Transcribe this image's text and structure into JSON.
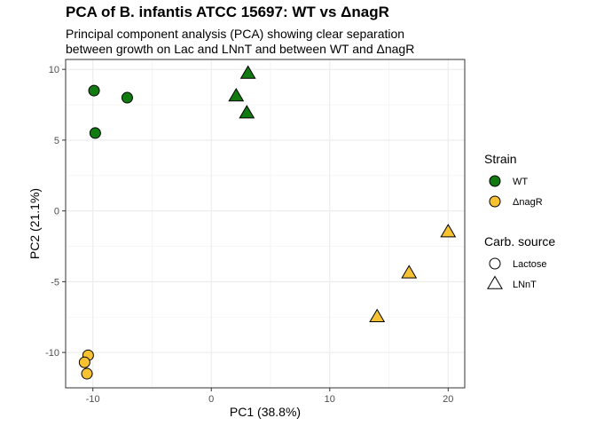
{
  "chart_data": {
    "type": "scatter",
    "title": "PCA of B. infantis ATCC 15697: WT vs ΔnagR",
    "subtitle": "Principal component analysis (PCA) showing clear separation\nbetween growth on Lac and LNnT and between WT and ΔnagR",
    "xlabel": "PC1 (38.8%)",
    "ylabel": "PC2 (21.1%)",
    "xlim": [
      -12.3,
      21.4
    ],
    "ylim": [
      -12.5,
      10.7
    ],
    "xticks": [
      -10,
      0,
      10,
      20
    ],
    "yticks": [
      -10,
      -5,
      0,
      5,
      10
    ],
    "grid": true,
    "legend_position": "right",
    "legends": [
      {
        "title": "Strain",
        "entries": [
          {
            "label": "WT",
            "color": "#117a11"
          },
          {
            "label": "ΔnagR",
            "color": "#f7c232"
          }
        ]
      },
      {
        "title": "Carb. source",
        "entries": [
          {
            "label": "Lactose",
            "shape": "circle"
          },
          {
            "label": "LNnT",
            "shape": "triangle"
          }
        ]
      }
    ],
    "points": [
      {
        "x": -9.9,
        "y": 8.5,
        "strain": "WT",
        "source": "Lactose"
      },
      {
        "x": -7.1,
        "y": 8.0,
        "strain": "WT",
        "source": "Lactose"
      },
      {
        "x": -9.8,
        "y": 5.5,
        "strain": "WT",
        "source": "Lactose"
      },
      {
        "x": 3.1,
        "y": 9.7,
        "strain": "WT",
        "source": "LNnT"
      },
      {
        "x": 2.1,
        "y": 8.1,
        "strain": "WT",
        "source": "LNnT"
      },
      {
        "x": 3.0,
        "y": 6.9,
        "strain": "WT",
        "source": "LNnT"
      },
      {
        "x": -10.4,
        "y": -10.2,
        "strain": "ΔnagR",
        "source": "Lactose"
      },
      {
        "x": -10.7,
        "y": -10.7,
        "strain": "ΔnagR",
        "source": "Lactose"
      },
      {
        "x": -10.5,
        "y": -11.5,
        "strain": "ΔnagR",
        "source": "Lactose"
      },
      {
        "x": 20.0,
        "y": -1.5,
        "strain": "ΔnagR",
        "source": "LNnT"
      },
      {
        "x": 16.7,
        "y": -4.4,
        "strain": "ΔnagR",
        "source": "LNnT"
      },
      {
        "x": 14.0,
        "y": -7.5,
        "strain": "ΔnagR",
        "source": "LNnT"
      }
    ]
  }
}
